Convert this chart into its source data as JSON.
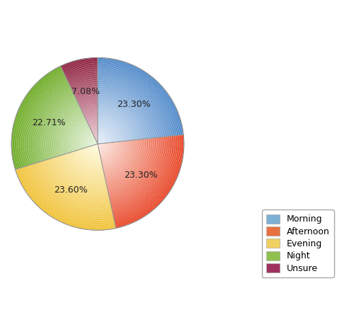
{
  "labels": [
    "Morning",
    "Afternoon",
    "Evening",
    "Night",
    "Unsure"
  ],
  "values": [
    23.3,
    23.3,
    23.6,
    22.71,
    7.08
  ],
  "colors_outer": [
    "#4a86c8",
    "#e84020",
    "#f0c030",
    "#6aaa20",
    "#8b1a3a"
  ],
  "colors_inner": [
    "#e8f0fa",
    "#fce8e0",
    "#fffce0",
    "#e8f5e0",
    "#f0d0d8"
  ],
  "legend_colors": [
    "#7bafd4",
    "#e87040",
    "#f0d060",
    "#90c050",
    "#a03060"
  ],
  "pct_labels": [
    "23.30%",
    "23.30%",
    "23.60%",
    "22.71%",
    "7.08%"
  ],
  "startangle": 90,
  "background_color": "#ffffff",
  "label_fontsize": 9,
  "legend_fontsize": 9
}
